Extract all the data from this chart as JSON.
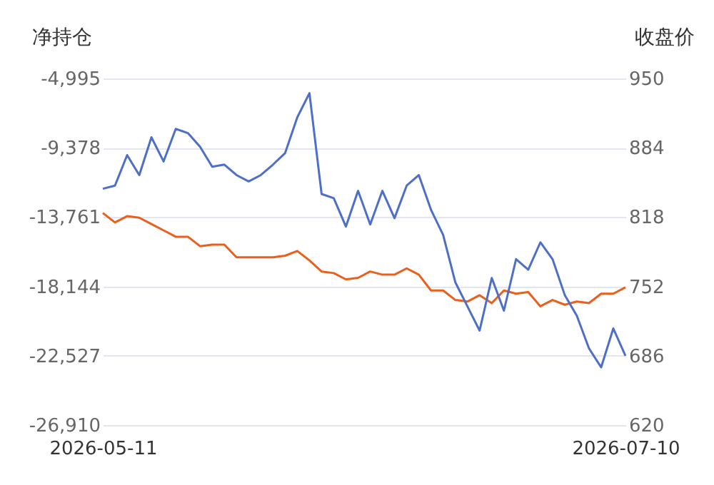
{
  "chart_data": {
    "type": "line",
    "ylabel": "净持仓",
    "y2label": "收盘价",
    "categories": [
      "2026-05-11",
      null,
      null,
      null,
      null,
      null,
      null,
      null,
      null,
      null,
      null,
      null,
      null,
      null,
      null,
      null,
      null,
      null,
      null,
      null,
      null,
      null,
      null,
      null,
      null,
      null,
      null,
      null,
      null,
      null,
      null,
      null,
      null,
      null,
      null,
      null,
      null,
      null,
      null,
      null,
      null,
      null,
      null,
      "2026-07-10"
    ],
    "series": [
      {
        "color": "#e8601c",
        "axis": "y",
        "values": [
          -13500,
          -14100,
          -13700,
          -13800,
          -14200,
          -14600,
          -15000,
          -15000,
          -15600,
          -15500,
          -15500,
          -16300,
          -16300,
          -16300,
          -16300,
          -16200,
          -15900,
          -16500,
          -17200,
          -17300,
          -17700,
          -17600,
          -17200,
          -17400,
          -17400,
          -17000,
          -17400,
          -18400,
          -18400,
          -19000,
          -19100,
          -18700,
          -19200,
          -18400,
          -18600,
          -18500,
          -19400,
          -19000,
          -19300,
          -19100,
          -19200,
          -18600,
          -18600,
          -18200
        ]
      },
      {
        "color": "#4e6fc9",
        "axis": "y2",
        "values": [
          845,
          848,
          877,
          858,
          894,
          871,
          902,
          898,
          885,
          866,
          868,
          858,
          852,
          858,
          868,
          879,
          913,
          936,
          840,
          836,
          809,
          843,
          811,
          843,
          817,
          848,
          858,
          825,
          801,
          756,
          733,
          710,
          760,
          729,
          778,
          768,
          794,
          778,
          744,
          724,
          693,
          675,
          712,
          686
        ]
      }
    ],
    "ylim": [
      -26910,
      -4995
    ],
    "yticks": [
      {
        "value": -4995,
        "label": "-4,995"
      },
      {
        "value": -9378,
        "label": "-9,378"
      },
      {
        "value": -13761,
        "label": "-13,761"
      },
      {
        "value": -18144,
        "label": "-18,144"
      },
      {
        "value": -22527,
        "label": "-22,527"
      },
      {
        "value": -26910,
        "label": "-26,910"
      }
    ],
    "y2lim": [
      620,
      950
    ],
    "y2ticks": [
      950,
      884,
      818,
      752,
      686,
      620
    ],
    "grid": "y"
  }
}
